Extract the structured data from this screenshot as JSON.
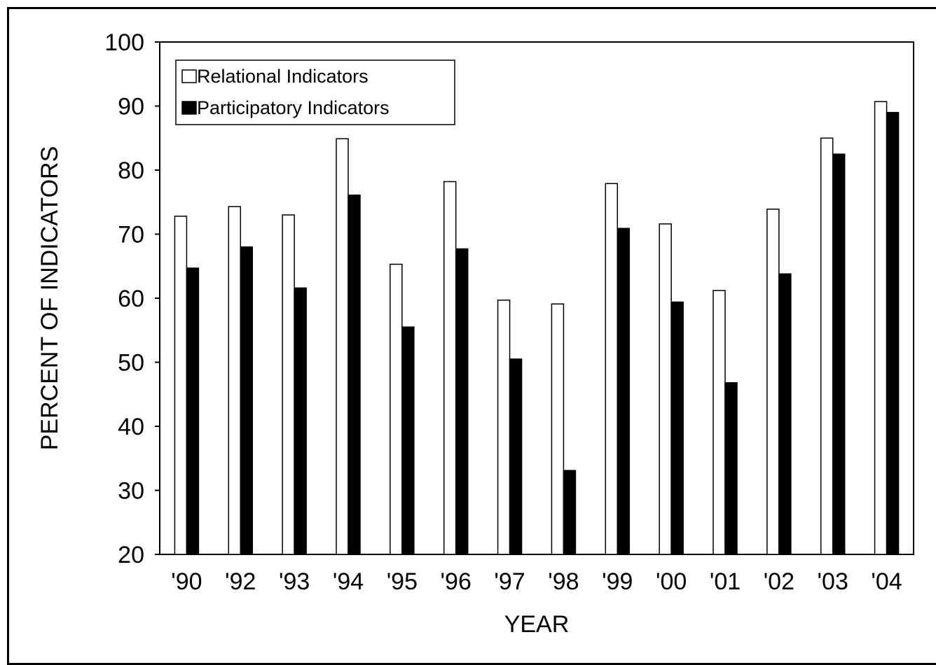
{
  "chart_data": {
    "type": "bar",
    "categories": [
      "'90",
      "'92",
      "'93",
      "'94",
      "'95",
      "'96",
      "'97",
      "'98",
      "'99",
      "'00",
      "'01",
      "'02",
      "'03",
      "'04"
    ],
    "series": [
      {
        "name": "Relational Indicators",
        "color": "#ffffff",
        "values": [
          72.8,
          74.3,
          73.0,
          84.9,
          65.3,
          78.2,
          59.7,
          59.1,
          77.9,
          71.6,
          61.2,
          73.9,
          85.0,
          90.7
        ]
      },
      {
        "name": "Participatory Indicators",
        "color": "#000000",
        "values": [
          64.7,
          68.0,
          61.6,
          76.1,
          55.5,
          67.7,
          50.5,
          33.1,
          70.9,
          59.4,
          46.8,
          63.8,
          82.5,
          89.0
        ]
      }
    ],
    "xlabel": "YEAR",
    "ylabel": "PERCENT OF INDICATORS",
    "ylim": [
      20,
      100
    ],
    "yticks": [
      "20",
      "30",
      "40",
      "50",
      "60",
      "70",
      "80",
      "90",
      "100"
    ],
    "grid": false,
    "legend_position": "top-left"
  }
}
